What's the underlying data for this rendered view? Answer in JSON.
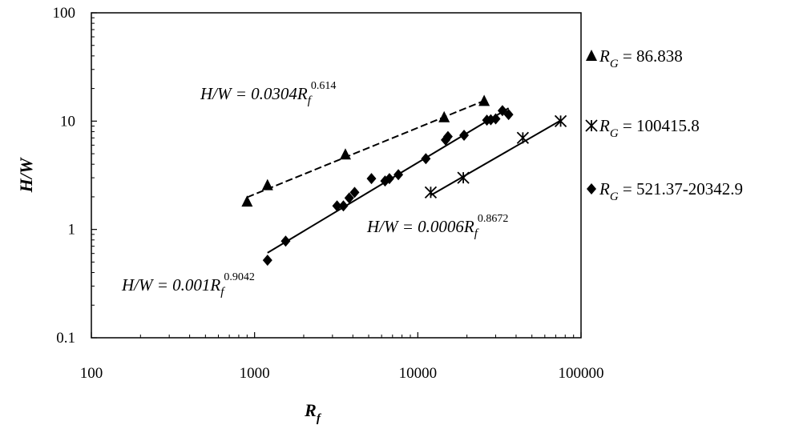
{
  "chart_data": {
    "type": "scatter",
    "title": "",
    "xlabel": "R",
    "xlabel_sub": "f",
    "ylabel": "H/W",
    "xscale": "log",
    "yscale": "log",
    "xlim": [
      100,
      100000
    ],
    "ylim": [
      0.1,
      100
    ],
    "x_ticks": [
      "100",
      "1000",
      "10000",
      "100000"
    ],
    "y_ticks": [
      "0.1",
      "1",
      "10",
      "100"
    ],
    "grid": false,
    "legend_position": "right",
    "series": [
      {
        "name": "86.838",
        "legend_prefix": "R",
        "legend_sub": "G",
        "marker": "triangle",
        "x": [
          900,
          1200,
          3600,
          14500,
          25500
        ],
        "y": [
          1.8,
          2.55,
          4.9,
          10.8,
          15.3
        ],
        "fit": {
          "label": "H/W = 0.0304R",
          "sub": "f",
          "sup": "0.614",
          "style": "dashed",
          "x_range": [
            900,
            25500
          ],
          "a": 0.0304,
          "b": 0.614
        }
      },
      {
        "name": "100415.8",
        "legend_prefix": "R",
        "legend_sub": "G",
        "marker": "star",
        "x": [
          12000,
          19000,
          44000,
          75000
        ],
        "y": [
          2.2,
          3.0,
          7.0,
          10.0
        ],
        "fit": {
          "label": "H/W = 0.0006R",
          "sub": "f",
          "sup": "0.8672",
          "style": "solid",
          "x_range": [
            12000,
            75000
          ],
          "a": 0.0006,
          "b": 0.8672
        }
      },
      {
        "name": "521.37-20342.9",
        "legend_prefix": "R",
        "legend_sub": "G",
        "marker": "diamond",
        "x": [
          1200,
          1550,
          3200,
          3500,
          3800,
          4100,
          5200,
          6300,
          6700,
          7600,
          11200,
          14800,
          15300,
          19200,
          26500,
          28000,
          30000,
          33000,
          36000
        ],
        "y": [
          0.52,
          0.78,
          1.65,
          1.65,
          1.95,
          2.2,
          2.95,
          2.8,
          2.95,
          3.2,
          4.5,
          6.7,
          7.2,
          7.4,
          10.2,
          10.3,
          10.5,
          12.5,
          11.5
        ],
        "fit": {
          "label": "H/W = 0.001R",
          "sub": "f",
          "sup": "0.9042",
          "style": "solid",
          "x_range": [
            1200,
            36000
          ],
          "a": 0.001,
          "b": 0.9042
        }
      }
    ]
  }
}
